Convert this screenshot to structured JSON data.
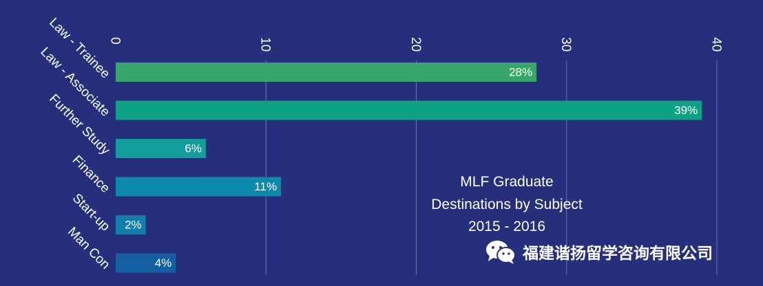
{
  "chart_data": {
    "type": "bar",
    "orientation": "horizontal",
    "title": "MLF Graduate Destinations by Subject 2015 - 2016",
    "title_lines": [
      "MLF Graduate",
      "Destinations by Subject",
      "2015 - 2016"
    ],
    "categories": [
      "Law - Trainee",
      "Law - Associate",
      "Further Study",
      "Finance",
      "Start-up",
      "Man Con"
    ],
    "values": [
      28,
      39,
      6,
      11,
      2,
      4
    ],
    "data_labels": [
      "28%",
      "39%",
      "6%",
      "11%",
      "2%",
      "4%"
    ],
    "colors": [
      "#3aa56a",
      "#10a184",
      "#139d9c",
      "#0f89a9",
      "#117ead",
      "#135fa2"
    ],
    "xlim": [
      0,
      40
    ],
    "xticks": [
      0,
      10,
      20,
      30,
      40
    ],
    "xtick_labels": [
      "0",
      "10",
      "20",
      "30",
      "40"
    ],
    "axis_position": "top",
    "grid": true,
    "xlabel": "",
    "ylabel": ""
  },
  "watermark": {
    "text": "福建谐扬留学咨询有限公司",
    "icon": "wechat-icon"
  },
  "colors": {
    "background": "#262f7b",
    "grid": "#6f77ad",
    "text": "#ffffff"
  }
}
